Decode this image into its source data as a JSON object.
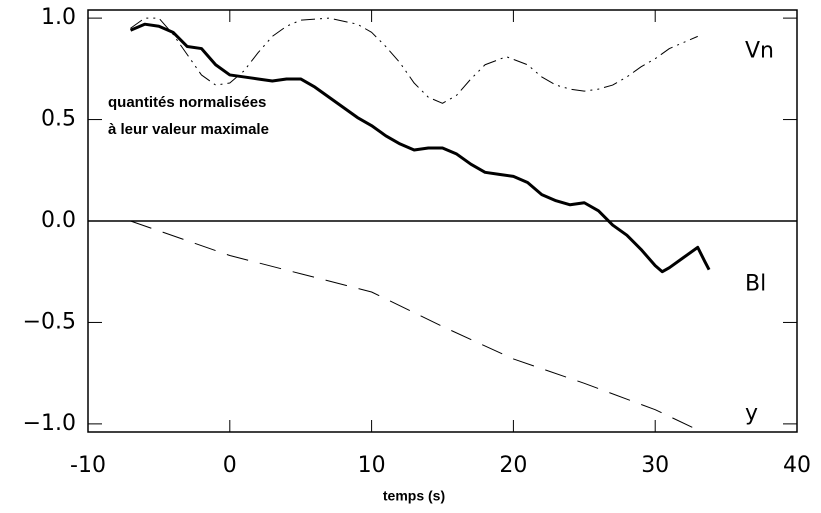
{
  "chart_data": {
    "type": "line",
    "xlabel": "temps (s)",
    "annotations": [
      "quantités normalisées",
      "à leur valeur maximale"
    ],
    "xlim": [
      -10,
      40
    ],
    "xticks": [
      -10,
      0,
      10,
      20,
      30,
      40
    ],
    "ylim": [
      -1.04,
      1.04
    ],
    "yticks": [
      {
        "value": -1.0,
        "label": "−1.0"
      },
      {
        "value": -0.5,
        "label": "−0.5"
      },
      {
        "value": 0,
        "label": "0.0"
      },
      {
        "value": 0.5,
        "label": "0.5"
      },
      {
        "value": 1.0,
        "label": "1.0"
      }
    ],
    "hlines": [
      0
    ],
    "series": [
      {
        "name": "Vn",
        "color": "#000000",
        "line_style": "dash-dot-dot",
        "line_width": 1,
        "x": [
          -7,
          -6,
          -5,
          -4,
          -3,
          -2,
          -1,
          0,
          1,
          2,
          3,
          4,
          5,
          7,
          9,
          10,
          11,
          12,
          13,
          14,
          15,
          16,
          17,
          18,
          19.5,
          21,
          22,
          23,
          24,
          25,
          26,
          27,
          28,
          29,
          30,
          31,
          32,
          33
        ],
        "values": [
          0.95,
          1.0,
          1.0,
          0.92,
          0.82,
          0.72,
          0.67,
          0.68,
          0.74,
          0.83,
          0.91,
          0.96,
          0.99,
          1.0,
          0.97,
          0.93,
          0.86,
          0.78,
          0.68,
          0.61,
          0.58,
          0.62,
          0.7,
          0.77,
          0.81,
          0.77,
          0.71,
          0.67,
          0.65,
          0.64,
          0.65,
          0.67,
          0.71,
          0.76,
          0.8,
          0.85,
          0.88,
          0.91
        ]
      },
      {
        "name": "Bl",
        "color": "#000000",
        "line_style": "solid",
        "line_width": 3,
        "x": [
          -7,
          -6,
          -5,
          -4,
          -3,
          -2,
          -1,
          0,
          1,
          2,
          3,
          4,
          5,
          6,
          7,
          8,
          9,
          10,
          11,
          12,
          13,
          14,
          15,
          16,
          17,
          18,
          19,
          20,
          21,
          22,
          23,
          24,
          25,
          26,
          27,
          28,
          29,
          30,
          30.5,
          31,
          32,
          33,
          33.5,
          33.8
        ],
        "values": [
          0.94,
          0.97,
          0.96,
          0.93,
          0.86,
          0.85,
          0.77,
          0.72,
          0.71,
          0.7,
          0.69,
          0.7,
          0.7,
          0.66,
          0.61,
          0.56,
          0.51,
          0.47,
          0.42,
          0.38,
          0.35,
          0.36,
          0.36,
          0.33,
          0.28,
          0.24,
          0.23,
          0.22,
          0.19,
          0.13,
          0.1,
          0.08,
          0.09,
          0.05,
          -0.02,
          -0.07,
          -0.14,
          -0.22,
          -0.25,
          -0.23,
          -0.18,
          -0.13,
          -0.2,
          -0.24
        ]
      },
      {
        "name": "y",
        "color": "#000000",
        "line_style": "dash",
        "line_width": 1,
        "x": [
          -7,
          0,
          5,
          10,
          15,
          20,
          25,
          30,
          33
        ],
        "values": [
          0,
          -0.17,
          -0.26,
          -0.35,
          -0.52,
          -0.68,
          -0.8,
          -0.93,
          -1.03
        ]
      }
    ]
  }
}
